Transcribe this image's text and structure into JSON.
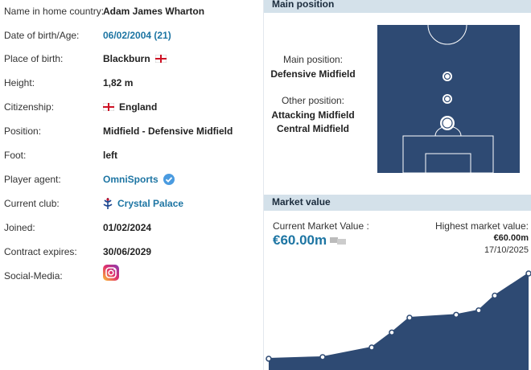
{
  "player_info": {
    "rows": [
      {
        "label": "Name in home country:",
        "value": "Adam James Wharton"
      },
      {
        "label": "Date of birth/Age:",
        "value": "06/02/2004 (21)"
      },
      {
        "label": "Place of birth:",
        "value": "Blackburn"
      },
      {
        "label": "Height:",
        "value": "1,82 m"
      },
      {
        "label": "Citizenship:",
        "value": "England"
      },
      {
        "label": "Position:",
        "value": "Midfield - Defensive Midfield"
      },
      {
        "label": "Foot:",
        "value": "left"
      },
      {
        "label": "Player agent:",
        "value": "OmniSports"
      },
      {
        "label": "Current club:",
        "value": "Crystal Palace"
      },
      {
        "label": "Joined:",
        "value": "01/02/2024"
      },
      {
        "label": "Contract expires:",
        "value": "30/06/2029"
      },
      {
        "label": "Social-Media:"
      }
    ]
  },
  "main_position": {
    "header": "Main position",
    "main_label": "Main position:",
    "main": "Defensive Midfield",
    "other_label": "Other position:",
    "other": [
      "Attacking Midfield",
      "Central Midfield"
    ]
  },
  "market_value": {
    "header": "Market value",
    "current_label": "Current Market Value :",
    "current": "€60.00m",
    "highest_label": "Highest market value:",
    "highest": "€60.00m",
    "highest_date": "17/10/2025",
    "history": {
      "values": [
        2.2,
        3.3,
        9.8,
        20,
        30,
        32,
        35,
        45,
        60
      ]
    }
  }
}
